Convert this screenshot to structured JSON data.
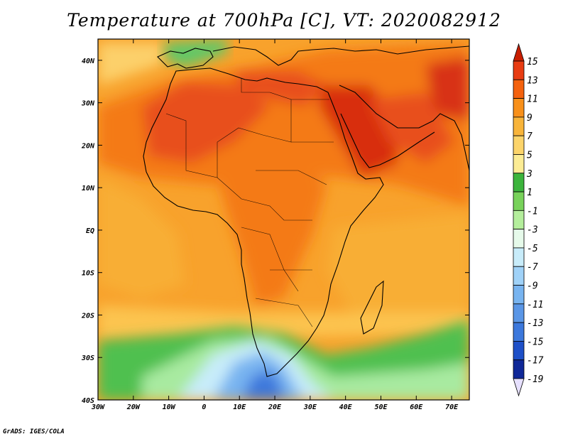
{
  "title": "Temperature at 700hPa [C], VT: 2020082912",
  "credit": "GrADS: IGES/COLA",
  "map": {
    "lon_range": [
      -30,
      75
    ],
    "lat_range": [
      -40,
      45
    ],
    "lat_ticks": [
      {
        "value": 40,
        "label": "40N"
      },
      {
        "value": 30,
        "label": "30N"
      },
      {
        "value": 20,
        "label": "20N"
      },
      {
        "value": 10,
        "label": "10N"
      },
      {
        "value": 0,
        "label": "EQ"
      },
      {
        "value": -10,
        "label": "10S"
      },
      {
        "value": -20,
        "label": "20S"
      },
      {
        "value": -30,
        "label": "30S"
      },
      {
        "value": -40,
        "label": "40S"
      }
    ],
    "lon_ticks": [
      {
        "value": -30,
        "label": "30W"
      },
      {
        "value": -20,
        "label": "20W"
      },
      {
        "value": -10,
        "label": "10W"
      },
      {
        "value": 0,
        "label": "0"
      },
      {
        "value": 10,
        "label": "10E"
      },
      {
        "value": 20,
        "label": "20E"
      },
      {
        "value": 30,
        "label": "30E"
      },
      {
        "value": 40,
        "label": "40E"
      },
      {
        "value": 50,
        "label": "50E"
      },
      {
        "value": 60,
        "label": "60E"
      },
      {
        "value": 70,
        "label": "70E"
      }
    ]
  },
  "colorbar": {
    "labels": [
      "15",
      "13",
      "11",
      "9",
      "7",
      "5",
      "3",
      "1",
      "-1",
      "-3",
      "-5",
      "-7",
      "-9",
      "-11",
      "-13",
      "-15",
      "-17",
      "-19"
    ],
    "colors": [
      "#c81e00",
      "#e83c12",
      "#f4620e",
      "#f8901a",
      "#f8b43a",
      "#fcd46a",
      "#fcec94",
      "#3cb43c",
      "#78d25a",
      "#b4ee9c",
      "#e6faea",
      "#c8ecfa",
      "#a0d2f8",
      "#78b4f0",
      "#5a96e6",
      "#3c78dc",
      "#1e50c8",
      "#102898",
      "#0a0a6a"
    ]
  }
}
